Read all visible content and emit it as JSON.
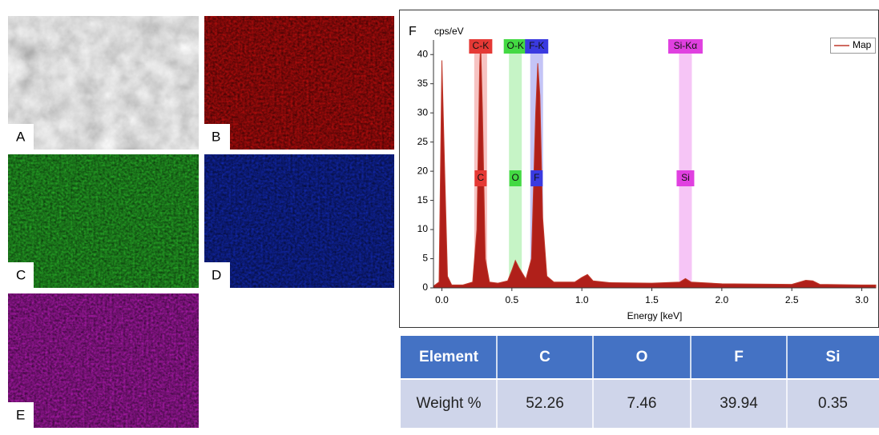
{
  "panels": [
    {
      "label": "A"
    },
    {
      "label": "B"
    },
    {
      "label": "C"
    },
    {
      "label": "D"
    },
    {
      "label": "E"
    }
  ],
  "chart_data": {
    "type": "area",
    "panel_label": "F",
    "y_label": "cps/eV",
    "x_label": "Energy [keV]",
    "xlim": [
      -0.06,
      3.1
    ],
    "ylim": [
      0,
      42.5
    ],
    "xticks": [
      {
        "value": 0,
        "label": "0.0"
      },
      {
        "value": 0.5,
        "label": "0.5"
      },
      {
        "value": 1,
        "label": "1.0"
      },
      {
        "value": 1.5,
        "label": "1.5"
      },
      {
        "value": 2,
        "label": "2.0"
      },
      {
        "value": 2.5,
        "label": "2.5"
      },
      {
        "value": 3,
        "label": "3.0"
      }
    ],
    "yticks": [
      0,
      5,
      10,
      15,
      20,
      25,
      30,
      35,
      40
    ],
    "legend": "top-right",
    "series": [
      {
        "name": "Map",
        "color": "#c0392b",
        "x": [
          -0.06,
          -0.02,
          0,
          0.02,
          0.04,
          0.07,
          0.15,
          0.22,
          0.25,
          0.27,
          0.277,
          0.29,
          0.31,
          0.34,
          0.4,
          0.47,
          0.5,
          0.525,
          0.55,
          0.6,
          0.64,
          0.67,
          0.685,
          0.7,
          0.72,
          0.75,
          0.8,
          0.95,
          1.0,
          1.04,
          1.08,
          1.2,
          1.5,
          1.7,
          1.74,
          1.78,
          2.0,
          2.5,
          2.6,
          2.65,
          2.7,
          3.0,
          3.1
        ],
        "values": [
          0.3,
          1,
          39,
          20,
          2,
          0.5,
          0.5,
          1,
          10,
          38,
          42,
          30,
          5,
          1,
          0.8,
          1.2,
          3,
          4.7,
          3.5,
          1.5,
          5,
          30,
          38.5,
          33,
          12,
          2,
          1,
          1,
          1.8,
          2.3,
          1.2,
          0.9,
          0.8,
          1,
          1.6,
          1,
          0.7,
          0.6,
          1.3,
          1.2,
          0.6,
          0.5,
          0.5
        ]
      }
    ],
    "elements": [
      {
        "name": "C-K",
        "short": "C",
        "energy": 0.277,
        "color": "#e53935"
      },
      {
        "name": "O-K",
        "short": "O",
        "energy": 0.525,
        "color": "#43d943"
      },
      {
        "name": "F-K",
        "short": "F",
        "energy": 0.677,
        "color": "#3a3ae0"
      },
      {
        "name": "Si-Kα",
        "short": "Si",
        "energy": 1.74,
        "color": "#e040e0"
      }
    ]
  },
  "table": {
    "header": [
      "Element",
      "C",
      "O",
      "F",
      "Si"
    ],
    "rows": [
      [
        "Weight %",
        "52.26",
        "7.46",
        "39.94",
        "0.35"
      ]
    ]
  }
}
